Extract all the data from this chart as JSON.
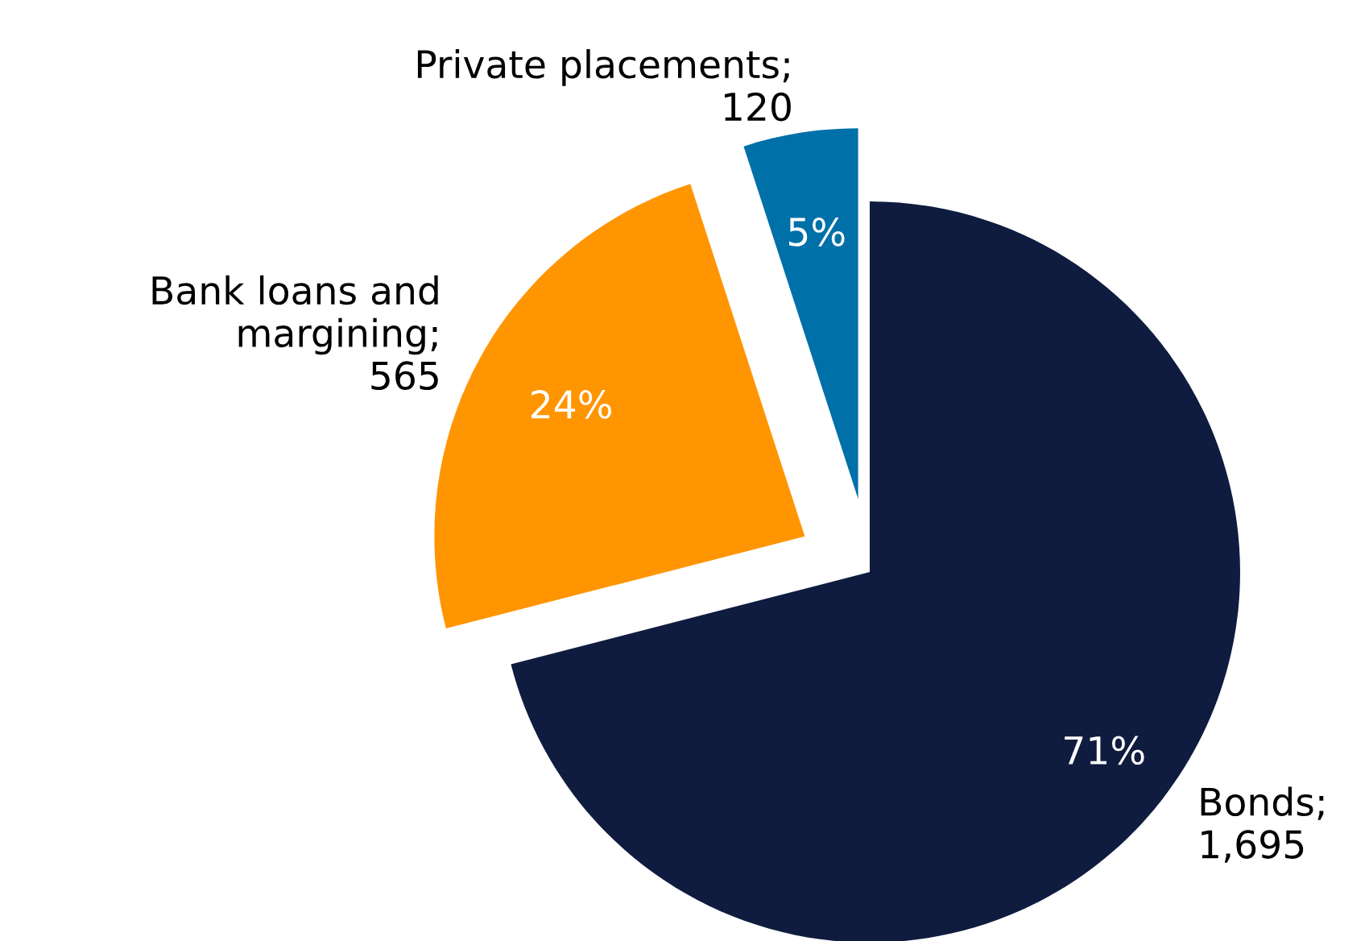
{
  "chart_data": {
    "type": "pie",
    "categories": [
      "Bonds",
      "Bank loans and margining",
      "Private placements"
    ],
    "values": [
      71,
      24,
      5
    ],
    "colors": [
      "#0f1c3f",
      "#ff9500",
      "#0070a8"
    ],
    "value_labels": [
      "71%",
      "24%",
      "5%"
    ],
    "annotations": [
      ";\n1,695",
      ";\n565",
      ";\n120"
    ]
  }
}
